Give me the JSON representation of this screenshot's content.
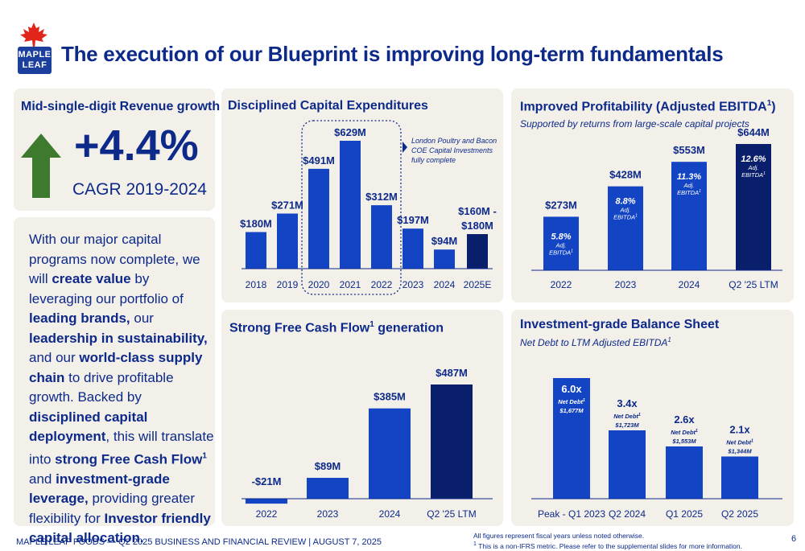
{
  "title": "The execution of our Blueprint is improving long-term fundamentals",
  "logo": {
    "line1": "MAPLE",
    "line2": "LEAF"
  },
  "colors": {
    "primary": "#0d2a8a",
    "bar": "#1344c4",
    "bar_dark": "#0a1f6b",
    "arrow": "#3d7a2e",
    "panel_bg": "#f3f0e9",
    "leaf": "#e1251b"
  },
  "revenue": {
    "title": "Mid-single-digit Revenue growth",
    "value": "+4.4%",
    "caption": "CAGR 2019-2024",
    "icon": "up-arrow-icon"
  },
  "narrative": {
    "p1": "With our major capital programs now complete, we will ",
    "b1": "create value",
    "p2": " by leveraging our portfolio of ",
    "b2": "leading brands,",
    "p3": " our ",
    "b3": "leadership in sustainability,",
    "p4": " and our ",
    "b4": "world-class supply chain",
    "p5": " to drive profitable growth. Backed by ",
    "b5": "disciplined capital deployment",
    "p6": ", this will translate into ",
    "b6": "strong Free Cash Flow",
    "sup6": "1",
    "p7": " and ",
    "b7": "investment-grade leverage,",
    "p8": " providing greater flexibility for ",
    "b8": "Investor friendly capital allocation."
  },
  "chart_data": [
    {
      "id": "capex",
      "type": "bar",
      "title": "Disciplined Capital Expenditures",
      "categories": [
        "2018",
        "2019",
        "2020",
        "2021",
        "2022",
        "2023",
        "2024",
        "2025E"
      ],
      "values": [
        180,
        271,
        491,
        629,
        312,
        197,
        94,
        170
      ],
      "labels": [
        "$180M",
        "$271M",
        "$491M",
        "$629M",
        "$312M",
        "$197M",
        "$94M",
        "$160M -\n$180M"
      ],
      "highlight": [
        false,
        false,
        false,
        false,
        false,
        false,
        false,
        true
      ],
      "annotation": "London Poultry and Bacon\nCOE Capital Investments\nfully complete",
      "ylim": [
        0,
        629
      ]
    },
    {
      "id": "ebitda",
      "type": "bar",
      "title": "Improved Profitability (Adjusted EBITDA",
      "title_sup": "1",
      "subtitle": "Supported by returns from large-scale capital projects",
      "categories": [
        "2022",
        "2023",
        "2024",
        "Q2 '25 LTM"
      ],
      "values": [
        273,
        428,
        553,
        644
      ],
      "labels": [
        "$273M",
        "$428M",
        "$553M",
        "$644M"
      ],
      "margins": [
        "5.8%",
        "8.8%",
        "11.3%",
        "12.6%"
      ],
      "margin_label": "Adj.\nEBITDA",
      "margin_sup": "1",
      "highlight": [
        false,
        false,
        false,
        true
      ],
      "ylim": [
        0,
        644
      ]
    },
    {
      "id": "fcf",
      "type": "bar",
      "title": "Strong Free Cash Flow",
      "title_sup": "1",
      "title_suffix": " generation",
      "categories": [
        "2022",
        "2023",
        "2024",
        "Q2 '25 LTM"
      ],
      "values": [
        -21,
        89,
        385,
        487
      ],
      "labels": [
        "-$21M",
        "$89M",
        "$385M",
        "$487M"
      ],
      "highlight": [
        false,
        false,
        false,
        true
      ],
      "ylim": [
        -21,
        487
      ]
    },
    {
      "id": "leverage",
      "type": "bar",
      "title": "Investment-grade Balance Sheet",
      "subtitle": "Net Debt to LTM Adjusted EBITDA",
      "subtitle_sup": "1",
      "categories": [
        "Peak - Q1 2023",
        "Q2 2024",
        "Q1 2025",
        "Q2 2025"
      ],
      "values": [
        6.0,
        3.4,
        2.6,
        2.1
      ],
      "labels": [
        "6.0x",
        "3.4x",
        "2.6x",
        "2.1x"
      ],
      "net_debt": [
        "$1,677M",
        "$1,723M",
        "$1,553M",
        "$1,344M"
      ],
      "net_debt_label": "Net Debt",
      "net_debt_sup": "1",
      "ylim": [
        0,
        6.0
      ]
    }
  ],
  "footer": {
    "left": "MAPLE LEAF FOODS — Q2 2025 BUSINESS AND FINANCIAL REVIEW |  AUGUST 7, 2025",
    "note1": "All figures represent fiscal years unless noted otherwise.",
    "note2_sup": "1",
    "note2": " This is a non-IFRS metric. Please refer to the supplemental slides for more information.",
    "page": "6"
  }
}
